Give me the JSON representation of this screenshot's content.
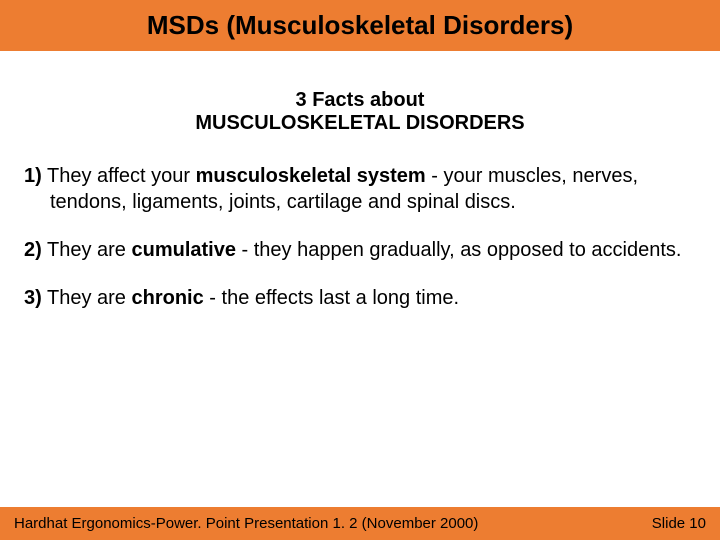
{
  "colors": {
    "accent": "#ed7d31",
    "background": "#ffffff",
    "text": "#000000"
  },
  "title": "MSDs (Musculoskeletal Disorders)",
  "subtitle": {
    "line1": "3 Facts about",
    "line2": "MUSCULOSKELETAL DISORDERS"
  },
  "facts": [
    {
      "num": "1)",
      "pre": " They affect your ",
      "bold": "musculoskeletal system",
      "post": " - your muscles, nerves, tendons, ligaments, joints, cartilage and spinal discs."
    },
    {
      "num": "2)",
      "pre": " They are ",
      "bold": "cumulative",
      "post": " - they happen gradually, as opposed to accidents."
    },
    {
      "num": "3)",
      "pre": " They are ",
      "bold": "chronic",
      "post": " - the effects last a long time."
    }
  ],
  "footer": {
    "left": "Hardhat Ergonomics-Power. Point Presentation 1. 2 (November 2000)",
    "right": "Slide 10"
  },
  "typography": {
    "title_fontsize": 26,
    "subtitle_fontsize": 20,
    "body_fontsize": 20,
    "footer_fontsize": 15
  }
}
